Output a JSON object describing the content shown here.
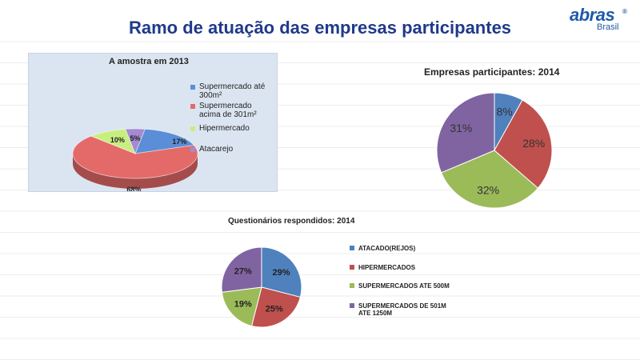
{
  "slide": {
    "title": "Ramo de atuação das empresas participantes"
  },
  "logo": {
    "word": "abras",
    "sub": "Brasil",
    "reg": "®"
  },
  "chart_data": [
    {
      "type": "pie",
      "title": "A amostra em 2013",
      "categories": [
        "Supermercado até 300m²",
        "Supermercado acima de 301m²",
        "Hipermercado",
        "Atacarejo"
      ],
      "values": [
        17,
        68,
        10,
        5
      ],
      "labels": [
        "17%",
        "68%",
        "10%",
        "5%"
      ],
      "colors": [
        "#5b8ed6",
        "#e46a6a",
        "#c9ee80",
        "#a58ad2"
      ],
      "legend": "right"
    },
    {
      "type": "pie",
      "title": "Empresas participantes: 2014",
      "values": [
        8,
        28,
        32,
        31
      ],
      "labels": [
        "8%",
        "28%",
        "32%",
        "31%"
      ],
      "colors": [
        "#4f81bd",
        "#c0504d",
        "#9bbb59",
        "#8064a2"
      ],
      "legend": "none"
    },
    {
      "type": "pie",
      "title": "Questionários respondidos: 2014",
      "categories": [
        "ATACADO(REJOS)",
        "HIPERMERCADOS",
        "SUPERMERCADOS ATE 500M",
        "SUPERMERCADOS DE 501M ATE 1250M"
      ],
      "values": [
        29,
        25,
        19,
        27
      ],
      "labels": [
        "29%",
        "25%",
        "19%",
        "27%"
      ],
      "colors": [
        "#4f81bd",
        "#c0504d",
        "#9bbb59",
        "#8064a2"
      ],
      "legend": "right"
    }
  ]
}
